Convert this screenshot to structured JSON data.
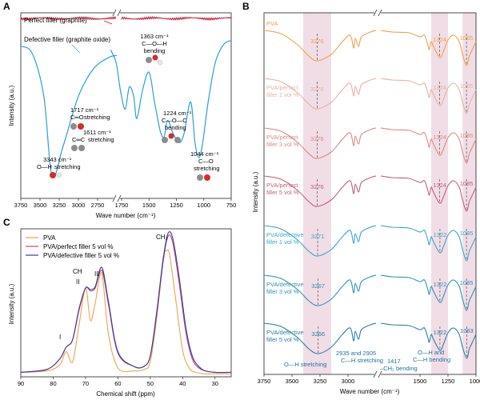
{
  "colors": {
    "graphite": "#c8102e",
    "graphite_oxide": "#2a9fd6",
    "pva": "#f0a24a",
    "perfect1": "#e3b3a8",
    "perfect3": "#d98a86",
    "perfect5": "#c0607a",
    "defective1": "#3aa6c9",
    "defective3": "#2e93b8",
    "defective5": "#2a7fa6",
    "nmr_pva": "#f0a24a",
    "nmr_perfect": "#b8467a",
    "nmr_defective": "#3b3c9b",
    "band": "#f1dde6"
  },
  "chart_data": [
    {
      "panel": "A",
      "type": "line",
      "xlabel": "Wave number (cm⁻¹)",
      "ylabel": "Intensity (a.u.)",
      "xlim": [
        3750,
        750
      ],
      "xaxis_break": [
        2500,
        1850
      ],
      "xticks": [
        "3750",
        "3500",
        "3250",
        "3000",
        "2750",
        "1750",
        "1500",
        "1250",
        "1000",
        "750"
      ],
      "series": [
        {
          "name": "Perfect filler (graphite)",
          "x": [
            3750,
            3500,
            3250,
            3000,
            2750,
            2500,
            1850,
            1750,
            1500,
            1250,
            1000,
            750
          ],
          "y": [
            0.97,
            0.97,
            0.97,
            0.97,
            0.97,
            0.97,
            0.97,
            0.97,
            0.97,
            0.97,
            0.97,
            0.97
          ]
        },
        {
          "name": "Defective filler (graphite oxide)",
          "x": [
            3750,
            3600,
            3450,
            3343,
            3200,
            3000,
            2800,
            2600,
            2500,
            1850,
            1800,
            1760,
            1717,
            1680,
            1640,
            1611,
            1560,
            1500,
            1450,
            1400,
            1363,
            1330,
            1280,
            1224,
            1180,
            1120,
            1080,
            1044,
            1010,
            960,
            900,
            850,
            800,
            750
          ],
          "y": [
            0.82,
            0.78,
            0.55,
            0.12,
            0.28,
            0.55,
            0.7,
            0.76,
            0.77,
            0.8,
            0.73,
            0.58,
            0.48,
            0.6,
            0.55,
            0.43,
            0.58,
            0.68,
            0.52,
            0.37,
            0.33,
            0.42,
            0.35,
            0.3,
            0.35,
            0.52,
            0.3,
            0.22,
            0.3,
            0.52,
            0.72,
            0.8,
            0.84,
            0.85
          ]
        }
      ],
      "annotations": [
        {
          "value": "1363 cm⁻¹",
          "group": "C—O—H",
          "mode": "bending"
        },
        {
          "value": "1717 cm⁻¹",
          "group": "C═O",
          "mode": "stretching"
        },
        {
          "value": "1611 cm⁻¹",
          "group": "C═C",
          "mode": "stretching"
        },
        {
          "value": "1224 cm⁻¹",
          "group": "C—O—C",
          "mode": "bending"
        },
        {
          "value": "3343 cm⁻¹",
          "group": "O—H",
          "mode": "stretching"
        },
        {
          "value": "1044 cm⁻¹",
          "group": "C—O",
          "mode": "stretching"
        }
      ]
    },
    {
      "panel": "B",
      "type": "line",
      "xlabel": "Wave number (cm⁻¹)",
      "ylabel": "Intensity (a.u.)",
      "xlim": [
        3750,
        1000
      ],
      "xaxis_break": [
        2750,
        1850
      ],
      "xticks": [
        "3750",
        "3500",
        "3250",
        "3000",
        "1500",
        "1250",
        "1000"
      ],
      "highlight_bands": [
        [
          3400,
          3150
        ],
        [
          1400,
          1250
        ],
        [
          1120,
          1000
        ]
      ],
      "series": [
        {
          "name": "PVA",
          "label_lines": [
            "PVA"
          ],
          "oh_peak": 3276,
          "ch_peak": 1324,
          "co_peak": 1085
        },
        {
          "name": "PVA/perfect filler 1 vol %",
          "label_lines": [
            "PVA/perfect",
            "filler 1 vol %"
          ],
          "oh_peak": 3276,
          "ch_peak": 1324,
          "co_peak": 1085
        },
        {
          "name": "PVA/perfect filler 3 vol %",
          "label_lines": [
            "PVA/perfect",
            "filler 3 vol %"
          ],
          "oh_peak": 3276,
          "ch_peak": 1324,
          "co_peak": 1085
        },
        {
          "name": "PVA/perfect filler 5 vol %",
          "label_lines": [
            "PVA/perfect",
            "filler 5 vol %"
          ],
          "oh_peak": 3276,
          "ch_peak": 1324,
          "co_peak": 1085
        },
        {
          "name": "PVA/defective filler 1 vol %",
          "label_lines": [
            "PVA/defective",
            "filler 1 vol %"
          ],
          "oh_peak": 3271,
          "ch_peak": 1322,
          "co_peak": 1085
        },
        {
          "name": "PVA/defective filler 3 vol %",
          "label_lines": [
            "PVA/defective",
            "filler 3 vol %"
          ],
          "oh_peak": 3267,
          "ch_peak": 1322,
          "co_peak": 1085
        },
        {
          "name": "PVA/defective filler 5 vol %",
          "label_lines": [
            "PVA/defective",
            "filler 5 vol %"
          ],
          "oh_peak": 3266,
          "ch_peak": 1322,
          "co_peak": 1083
        }
      ],
      "annotations": {
        "oh_stretch": "O—H stretching",
        "ch_stretch_value": "2935 and 2905",
        "ch_stretch_mode": "C—H stretching",
        "ch2_value": "1417",
        "ch2_mode": "–CH₂ bending",
        "ohch_line1": "O—H and",
        "ohch_line2": "C—H bending"
      }
    },
    {
      "panel": "C",
      "type": "line",
      "xlabel": "Chemical shift (ppm)",
      "ylabel": "Intensity (a.u.)",
      "xlim": [
        90,
        25
      ],
      "xticks": [
        "90",
        "80",
        "70",
        "60",
        "50",
        "40",
        "30"
      ],
      "series": [
        {
          "name": "PVA",
          "x": [
            90,
            82,
            78,
            76,
            74,
            72,
            70,
            68.5,
            67,
            65,
            63,
            60,
            55,
            52,
            50,
            48,
            46,
            45,
            44,
            42,
            40,
            38,
            36,
            33,
            30,
            25
          ],
          "y": [
            0.03,
            0.04,
            0.08,
            0.17,
            0.1,
            0.35,
            0.6,
            0.38,
            0.5,
            0.7,
            0.3,
            0.06,
            0.04,
            0.05,
            0.1,
            0.4,
            0.8,
            0.85,
            0.82,
            0.5,
            0.18,
            0.06,
            0.03,
            0.02,
            0.02,
            0.02
          ]
        },
        {
          "name": "PVA/perfect filler 5 vol %",
          "x": [
            90,
            82,
            78,
            76,
            74,
            72,
            70,
            68.5,
            67,
            65,
            63,
            60,
            55,
            52,
            50,
            48,
            46,
            44.5,
            43,
            41,
            39,
            37,
            35,
            33,
            30,
            25
          ],
          "y": [
            0.03,
            0.05,
            0.12,
            0.2,
            0.25,
            0.45,
            0.6,
            0.58,
            0.6,
            0.72,
            0.5,
            0.16,
            0.07,
            0.07,
            0.14,
            0.42,
            0.78,
            0.95,
            0.9,
            0.62,
            0.3,
            0.12,
            0.06,
            0.04,
            0.03,
            0.03
          ]
        },
        {
          "name": "PVA/defective filler 5 vol %",
          "x": [
            90,
            82,
            78,
            76,
            74,
            72,
            70,
            68.5,
            67,
            65,
            63,
            60,
            55,
            52,
            50,
            48,
            46,
            44.5,
            43,
            41,
            39,
            37,
            35,
            33,
            30,
            25
          ],
          "y": [
            0.03,
            0.05,
            0.12,
            0.2,
            0.25,
            0.46,
            0.6,
            0.59,
            0.61,
            0.74,
            0.52,
            0.17,
            0.07,
            0.07,
            0.14,
            0.44,
            0.8,
            0.97,
            0.93,
            0.66,
            0.33,
            0.14,
            0.07,
            0.04,
            0.03,
            0.03
          ]
        }
      ],
      "peak_labels": [
        {
          "text": "I",
          "ppm": 77
        },
        {
          "text": "CH",
          "ppm": 71
        },
        {
          "text": "II",
          "ppm": 70
        },
        {
          "text": "III",
          "ppm": 65
        },
        {
          "text": "CH₂",
          "ppm": 45
        }
      ]
    }
  ],
  "panels": {
    "a": "A",
    "b": "B",
    "c": "C"
  }
}
